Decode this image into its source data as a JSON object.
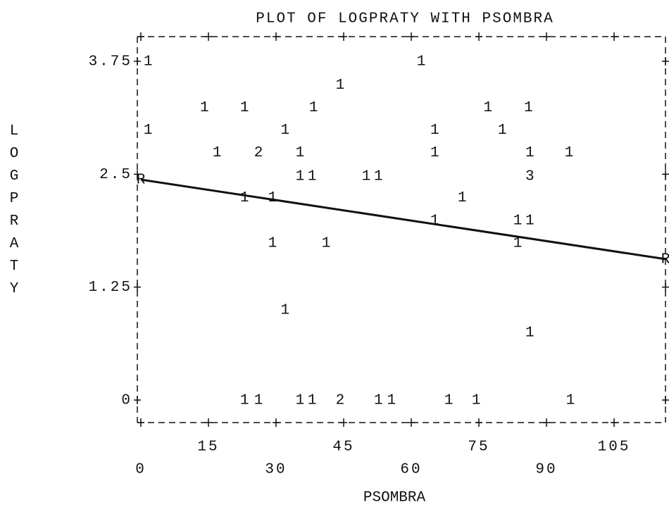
{
  "chart_data": {
    "type": "scatter",
    "title": "PLOT OF LOGPRATY WITH PSOMBRA",
    "x_label": "PSOMBRA",
    "y_label": "LOGPRATY",
    "xlim": [
      0,
      116.4
    ],
    "ylim": [
      0,
      3.75
    ],
    "xticks": [
      0,
      15,
      30,
      45,
      60,
      75,
      90,
      105
    ],
    "yticks": [
      0,
      1.25,
      2.5,
      3.75
    ],
    "color": "#111111",
    "x": [
      1.6,
      62.2,
      44.2,
      14.1,
      23,
      38.3,
      77,
      86,
      1.6,
      32,
      65.2,
      80.2,
      16.9,
      26.1,
      35.3,
      65.2,
      86.3,
      95,
      35.3,
      38,
      50,
      52.7,
      86.3,
      23,
      29.2,
      71.3,
      65.2,
      83.6,
      86.3,
      29.2,
      41.1,
      83.6,
      32,
      86.3,
      23,
      26.1,
      35.3,
      38,
      44.2,
      52.7,
      55.6,
      68.3,
      74.4,
      95.3
    ],
    "y": [
      3.75,
      3.75,
      3.49,
      3.24,
      3.24,
      3.24,
      3.24,
      3.24,
      2.99,
      2.99,
      2.99,
      2.99,
      2.74,
      2.74,
      2.74,
      2.74,
      2.74,
      2.74,
      2.48,
      2.48,
      2.48,
      2.48,
      2.48,
      2.24,
      2.24,
      2.24,
      1.99,
      1.99,
      1.99,
      1.74,
      1.74,
      1.74,
      1.0,
      0.75,
      0,
      0,
      0,
      0,
      0,
      0,
      0,
      0,
      0,
      0
    ],
    "counts": [
      1,
      1,
      1,
      1,
      1,
      1,
      1,
      1,
      1,
      1,
      1,
      1,
      1,
      2,
      1,
      1,
      1,
      1,
      1,
      1,
      1,
      1,
      3,
      1,
      1,
      1,
      1,
      1,
      1,
      1,
      1,
      1,
      1,
      1,
      1,
      1,
      1,
      1,
      2,
      1,
      1,
      1,
      1,
      1
    ],
    "fit_line": {
      "label": "R",
      "x": [
        0,
        116.4
      ],
      "y": [
        2.44,
        1.56
      ]
    }
  }
}
